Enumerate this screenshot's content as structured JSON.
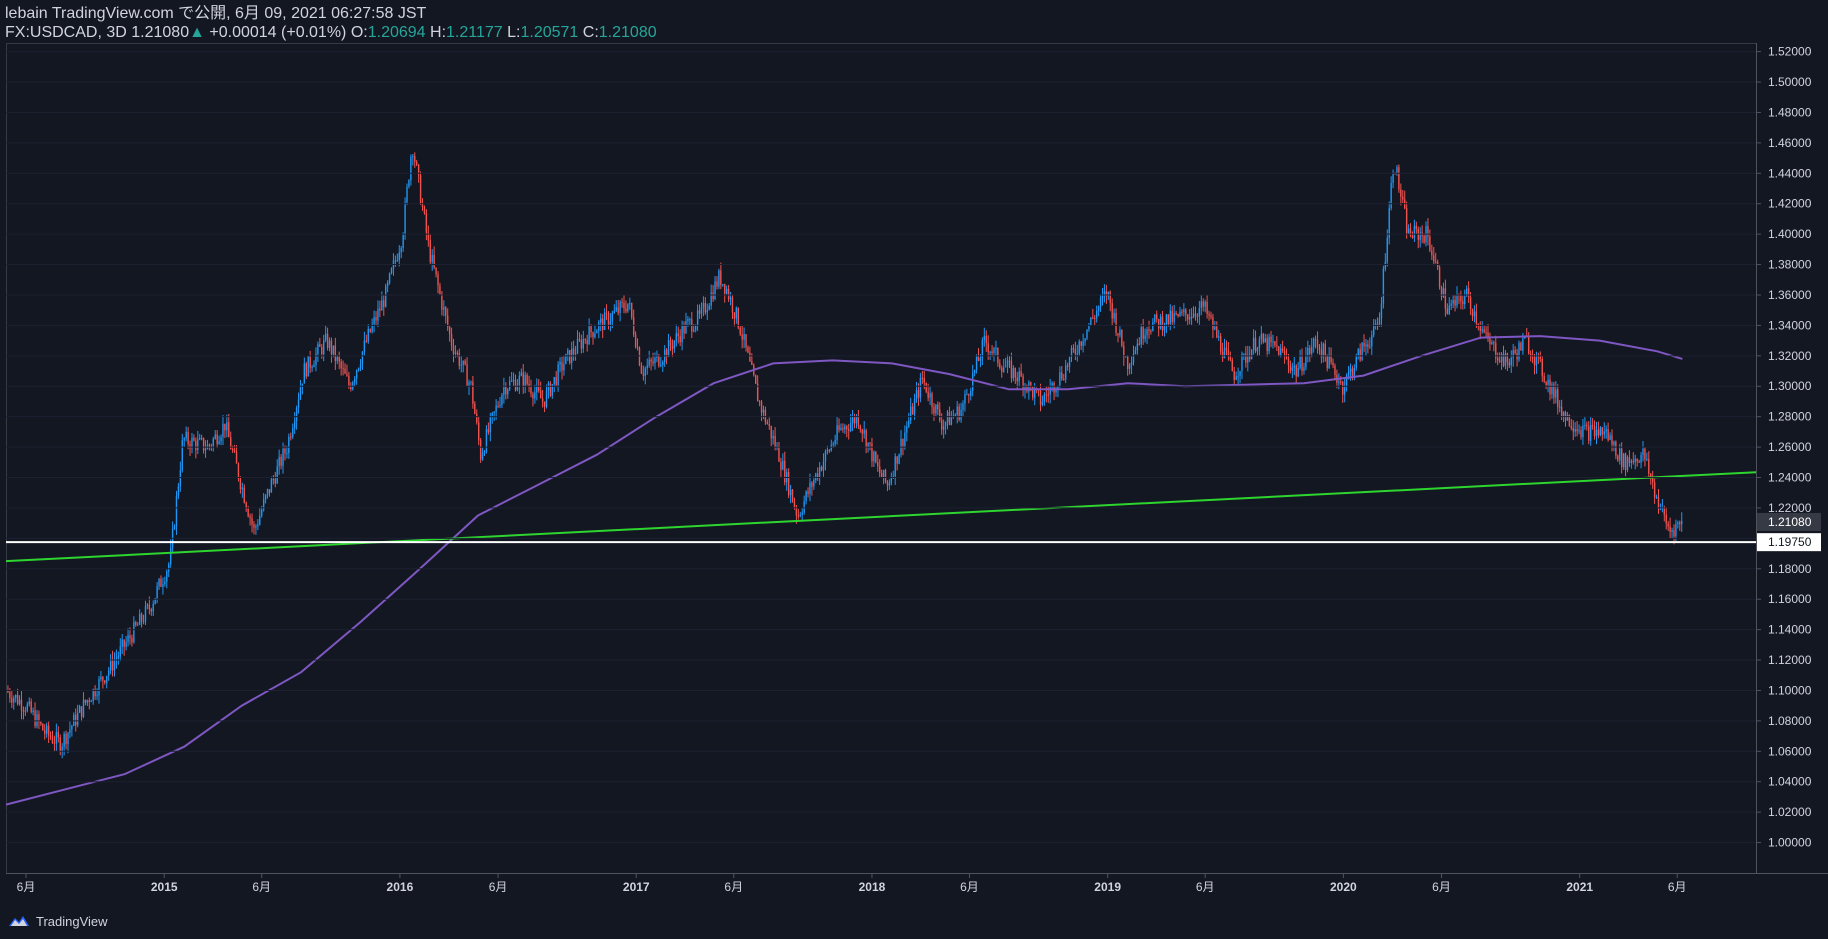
{
  "header": {
    "line1": "lebain TradingView.com で公開, 6月 09, 2021 06:27:58 JST",
    "symbol": "FX:USDCAD, 3D",
    "last": "1.21080",
    "arrow": "▲",
    "change": "+0.00014 (+0.01%)",
    "o_label": "O:",
    "o_value": "1.20694",
    "h_label": "H:",
    "h_value": "1.21177",
    "l_label": "L:",
    "l_value": "1.20571",
    "c_label": "C:",
    "c_value": "1.21080"
  },
  "footer": {
    "brand": "TradingView",
    "icon": "tradingview-logo-icon"
  },
  "colors": {
    "background": "#131722",
    "up": "#2196f3",
    "down": "#ef5350",
    "ma": "#7e57c2",
    "trendline": "#2ed52e",
    "hline": "#ffffff",
    "axis_text": "#d1d4dc",
    "value_green": "#26a69a"
  },
  "chart_data": {
    "type": "candlestick",
    "symbol": "FX:USDCAD",
    "interval": "3D",
    "x_range": [
      "2014-05-01",
      "2021-10-01"
    ],
    "ylim": [
      0.98,
      1.525
    ],
    "y_ticks": [
      "1.52000",
      "1.50000",
      "1.48000",
      "1.46000",
      "1.44000",
      "1.42000",
      "1.40000",
      "1.38000",
      "1.36000",
      "1.34000",
      "1.32000",
      "1.30000",
      "1.28000",
      "1.26000",
      "1.24000",
      "1.22000",
      "1.20000",
      "1.18000",
      "1.16000",
      "1.14000",
      "1.12000",
      "1.10000",
      "1.08000",
      "1.06000",
      "1.04000",
      "1.02000",
      "1.00000"
    ],
    "x_ticks": [
      {
        "date": "2014-06-01",
        "label": "6月"
      },
      {
        "date": "2015-01-01",
        "label": "2015"
      },
      {
        "date": "2015-06-01",
        "label": "6月"
      },
      {
        "date": "2016-01-01",
        "label": "2016"
      },
      {
        "date": "2016-06-01",
        "label": "6月"
      },
      {
        "date": "2017-01-01",
        "label": "2017"
      },
      {
        "date": "2017-06-01",
        "label": "6月"
      },
      {
        "date": "2018-01-01",
        "label": "2018"
      },
      {
        "date": "2018-06-01",
        "label": "6月"
      },
      {
        "date": "2019-01-01",
        "label": "2019"
      },
      {
        "date": "2019-06-01",
        "label": "6月"
      },
      {
        "date": "2020-01-01",
        "label": "2020"
      },
      {
        "date": "2020-06-01",
        "label": "6月"
      },
      {
        "date": "2021-01-01",
        "label": "2021"
      },
      {
        "date": "2021-06-01",
        "label": "6月"
      }
    ],
    "price_path": [
      [
        "2014-05-01",
        1.1
      ],
      [
        "2014-06-01",
        1.09
      ],
      [
        "2014-07-01",
        1.072
      ],
      [
        "2014-07-25",
        1.065
      ],
      [
        "2014-09-01",
        1.092
      ],
      [
        "2014-10-01",
        1.11
      ],
      [
        "2014-11-01",
        1.13
      ],
      [
        "2014-12-10",
        1.155
      ],
      [
        "2015-01-10",
        1.185
      ],
      [
        "2015-01-30",
        1.265
      ],
      [
        "2015-03-10",
        1.26
      ],
      [
        "2015-04-05",
        1.275
      ],
      [
        "2015-05-20",
        1.205
      ],
      [
        "2015-06-15",
        1.235
      ],
      [
        "2015-07-10",
        1.26
      ],
      [
        "2015-08-05",
        1.31
      ],
      [
        "2015-09-10",
        1.33
      ],
      [
        "2015-10-15",
        1.3
      ],
      [
        "2015-11-15",
        1.335
      ],
      [
        "2015-12-10",
        1.36
      ],
      [
        "2016-01-05",
        1.4
      ],
      [
        "2016-01-20",
        1.46
      ],
      [
        "2016-02-15",
        1.39
      ],
      [
        "2016-03-20",
        1.33
      ],
      [
        "2016-04-20",
        1.3
      ],
      [
        "2016-05-05",
        1.255
      ],
      [
        "2016-06-10",
        1.3
      ],
      [
        "2016-07-10",
        1.305
      ],
      [
        "2016-08-10",
        1.29
      ],
      [
        "2016-09-10",
        1.315
      ],
      [
        "2016-10-20",
        1.335
      ],
      [
        "2016-11-20",
        1.345
      ],
      [
        "2016-12-20",
        1.355
      ],
      [
        "2017-01-10",
        1.31
      ],
      [
        "2017-02-10",
        1.32
      ],
      [
        "2017-03-20",
        1.34
      ],
      [
        "2017-04-10",
        1.345
      ],
      [
        "2017-05-10",
        1.372
      ],
      [
        "2017-05-20",
        1.365
      ],
      [
        "2017-06-10",
        1.34
      ],
      [
        "2017-07-10",
        1.29
      ],
      [
        "2017-08-10",
        1.255
      ],
      [
        "2017-09-08",
        1.215
      ],
      [
        "2017-10-10",
        1.245
      ],
      [
        "2017-11-10",
        1.27
      ],
      [
        "2017-12-10",
        1.28
      ],
      [
        "2018-01-10",
        1.245
      ],
      [
        "2018-01-25",
        1.235
      ],
      [
        "2018-03-01",
        1.28
      ],
      [
        "2018-03-20",
        1.305
      ],
      [
        "2018-04-20",
        1.275
      ],
      [
        "2018-05-20",
        1.285
      ],
      [
        "2018-06-25",
        1.33
      ],
      [
        "2018-07-20",
        1.315
      ],
      [
        "2018-08-20",
        1.305
      ],
      [
        "2018-09-20",
        1.29
      ],
      [
        "2018-10-25",
        1.31
      ],
      [
        "2018-12-31",
        1.362
      ],
      [
        "2019-01-31",
        1.315
      ],
      [
        "2019-03-01",
        1.34
      ],
      [
        "2019-04-20",
        1.345
      ],
      [
        "2019-05-30",
        1.352
      ],
      [
        "2019-07-15",
        1.308
      ],
      [
        "2019-08-20",
        1.33
      ],
      [
        "2019-09-20",
        1.325
      ],
      [
        "2019-10-20",
        1.31
      ],
      [
        "2019-11-20",
        1.33
      ],
      [
        "2019-12-31",
        1.3
      ],
      [
        "2020-01-31",
        1.325
      ],
      [
        "2020-02-25",
        1.34
      ],
      [
        "2020-03-19",
        1.45
      ],
      [
        "2020-04-10",
        1.4
      ],
      [
        "2020-05-10",
        1.4
      ],
      [
        "2020-06-10",
        1.35
      ],
      [
        "2020-07-10",
        1.36
      ],
      [
        "2020-08-10",
        1.33
      ],
      [
        "2020-09-10",
        1.315
      ],
      [
        "2020-10-10",
        1.33
      ],
      [
        "2020-11-10",
        1.305
      ],
      [
        "2020-12-10",
        1.28
      ],
      [
        "2021-01-10",
        1.27
      ],
      [
        "2021-02-10",
        1.27
      ],
      [
        "2021-03-10",
        1.25
      ],
      [
        "2021-04-10",
        1.255
      ],
      [
        "2021-05-01",
        1.225
      ],
      [
        "2021-05-20",
        1.205
      ],
      [
        "2021-06-09",
        1.2108
      ]
    ],
    "moving_average": [
      [
        "2014-05-01",
        1.025
      ],
      [
        "2014-08-01",
        1.035
      ],
      [
        "2014-11-01",
        1.045
      ],
      [
        "2015-02-01",
        1.063
      ],
      [
        "2015-05-01",
        1.09
      ],
      [
        "2015-08-01",
        1.112
      ],
      [
        "2015-11-01",
        1.145
      ],
      [
        "2016-02-01",
        1.18
      ],
      [
        "2016-05-01",
        1.215
      ],
      [
        "2016-08-01",
        1.235
      ],
      [
        "2016-11-01",
        1.255
      ],
      [
        "2017-02-01",
        1.28
      ],
      [
        "2017-05-01",
        1.302
      ],
      [
        "2017-08-01",
        1.315
      ],
      [
        "2017-11-01",
        1.317
      ],
      [
        "2018-02-01",
        1.315
      ],
      [
        "2018-05-01",
        1.308
      ],
      [
        "2018-08-01",
        1.298
      ],
      [
        "2018-11-01",
        1.298
      ],
      [
        "2019-02-01",
        1.302
      ],
      [
        "2019-05-01",
        1.3
      ],
      [
        "2019-08-01",
        1.301
      ],
      [
        "2019-11-01",
        1.302
      ],
      [
        "2020-02-01",
        1.307
      ],
      [
        "2020-05-01",
        1.32
      ],
      [
        "2020-08-01",
        1.332
      ],
      [
        "2020-11-01",
        1.333
      ],
      [
        "2021-02-01",
        1.33
      ],
      [
        "2021-05-01",
        1.323
      ],
      [
        "2021-06-09",
        1.318
      ]
    ],
    "trendline": {
      "start": [
        "2014-05-01",
        1.185
      ],
      "end": [
        "2021-10-01",
        1.2435
      ]
    },
    "horizontal_line": {
      "price": 1.1975,
      "label": "1.19750"
    },
    "last_price_label": "1.21080"
  }
}
